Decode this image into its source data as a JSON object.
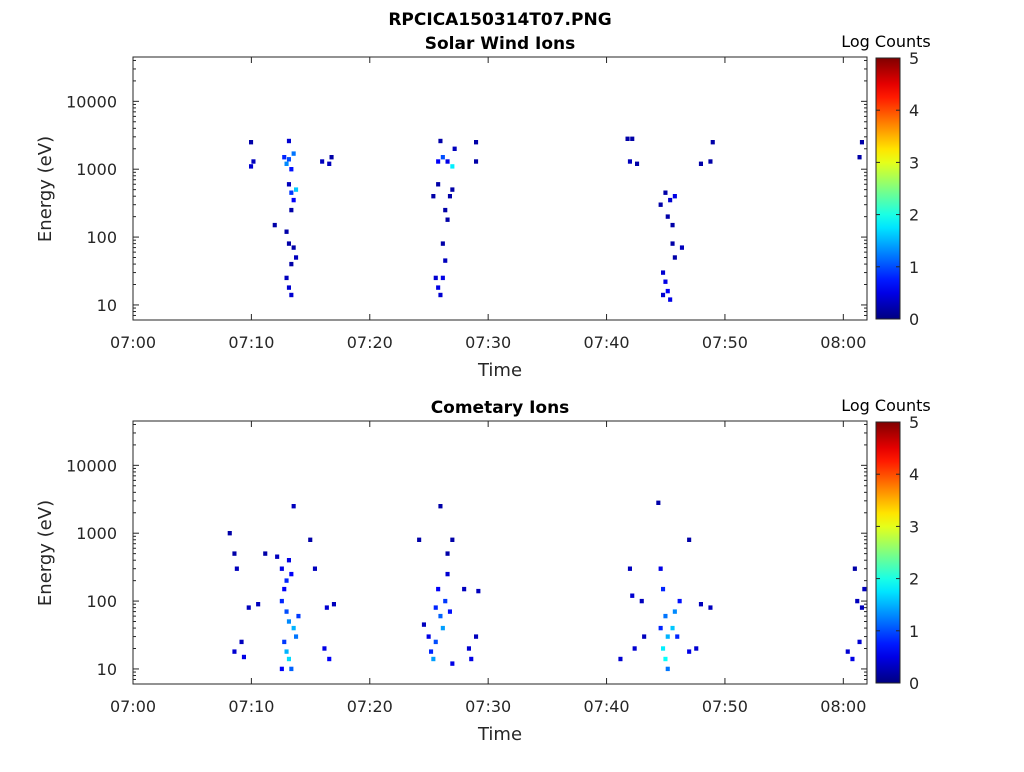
{
  "figure_title": "RPCICA150314T07.PNG",
  "colorbar": {
    "label": "Log Counts",
    "ticks": [
      0,
      1,
      2,
      3,
      4,
      5
    ],
    "colormap": "jet",
    "range": [
      0,
      5
    ]
  },
  "chart_data": [
    {
      "type": "heatmap",
      "title": "Solar Wind Ions",
      "xlabel": "Time",
      "ylabel": "Energy (eV)",
      "xlim": [
        "07:00",
        "08:02"
      ],
      "ylim": [
        6,
        45000
      ],
      "yscale": "log",
      "xticks": [
        "07:00",
        "07:10",
        "07:20",
        "07:30",
        "07:40",
        "07:50",
        "08:00"
      ],
      "yticks": [
        10,
        100,
        1000,
        10000
      ],
      "ytick_labels": [
        "10",
        "100",
        "1000",
        "10000"
      ],
      "grid": false,
      "cell_minutes": 0.35,
      "cells": [
        {
          "t": "07:09.8",
          "e": 2500,
          "v": 0.2
        },
        {
          "t": "07:09.8",
          "e": 1100,
          "v": 0.4
        },
        {
          "t": "07:10.0",
          "e": 1300,
          "v": 0.3
        },
        {
          "t": "07:11.8",
          "e": 150,
          "v": 0.2
        },
        {
          "t": "07:12.6",
          "e": 1500,
          "v": 0.8
        },
        {
          "t": "07:12.8",
          "e": 1200,
          "v": 1.3
        },
        {
          "t": "07:13.0",
          "e": 2600,
          "v": 0.4
        },
        {
          "t": "07:13.0",
          "e": 1400,
          "v": 1.0
        },
        {
          "t": "07:13.2",
          "e": 1000,
          "v": 0.7
        },
        {
          "t": "07:13.4",
          "e": 1700,
          "v": 1.2
        },
        {
          "t": "07:13.0",
          "e": 600,
          "v": 0.3
        },
        {
          "t": "07:13.2",
          "e": 450,
          "v": 0.9
        },
        {
          "t": "07:13.6",
          "e": 500,
          "v": 1.6
        },
        {
          "t": "07:13.4",
          "e": 350,
          "v": 0.6
        },
        {
          "t": "07:13.2",
          "e": 250,
          "v": 0.2
        },
        {
          "t": "07:12.8",
          "e": 120,
          "v": 0.2
        },
        {
          "t": "07:13.0",
          "e": 80,
          "v": 0.2
        },
        {
          "t": "07:13.4",
          "e": 70,
          "v": 0.2
        },
        {
          "t": "07:13.6",
          "e": 50,
          "v": 0.3
        },
        {
          "t": "07:13.2",
          "e": 40,
          "v": 0.2
        },
        {
          "t": "07:12.8",
          "e": 25,
          "v": 0.3
        },
        {
          "t": "07:13.0",
          "e": 18,
          "v": 0.4
        },
        {
          "t": "07:13.2",
          "e": 14,
          "v": 0.4
        },
        {
          "t": "07:15.8",
          "e": 1300,
          "v": 0.3
        },
        {
          "t": "07:16.4",
          "e": 1200,
          "v": 0.3
        },
        {
          "t": "07:16.6",
          "e": 1500,
          "v": 0.2
        },
        {
          "t": "07:25.8",
          "e": 2600,
          "v": 0.2
        },
        {
          "t": "07:25.6",
          "e": 1300,
          "v": 0.6
        },
        {
          "t": "07:26.0",
          "e": 1500,
          "v": 1.0
        },
        {
          "t": "07:26.4",
          "e": 1300,
          "v": 0.5
        },
        {
          "t": "07:26.8",
          "e": 1100,
          "v": 1.8
        },
        {
          "t": "07:27.0",
          "e": 2000,
          "v": 0.3
        },
        {
          "t": "07:26.8",
          "e": 500,
          "v": 0.2
        },
        {
          "t": "07:26.6",
          "e": 400,
          "v": 0.2
        },
        {
          "t": "07:25.6",
          "e": 600,
          "v": 0.2
        },
        {
          "t": "07:25.2",
          "e": 400,
          "v": 0.2
        },
        {
          "t": "07:26.2",
          "e": 250,
          "v": 0.2
        },
        {
          "t": "07:26.4",
          "e": 180,
          "v": 0.2
        },
        {
          "t": "07:26.0",
          "e": 80,
          "v": 0.2
        },
        {
          "t": "07:26.2",
          "e": 45,
          "v": 0.3
        },
        {
          "t": "07:25.4",
          "e": 25,
          "v": 0.4
        },
        {
          "t": "07:25.6",
          "e": 18,
          "v": 0.5
        },
        {
          "t": "07:25.8",
          "e": 14,
          "v": 0.4
        },
        {
          "t": "07:26.0",
          "e": 25,
          "v": 0.5
        },
        {
          "t": "07:28.8",
          "e": 1300,
          "v": 0.2
        },
        {
          "t": "07:28.8",
          "e": 2500,
          "v": 0.2
        },
        {
          "t": "07:41.6",
          "e": 2800,
          "v": 0.2
        },
        {
          "t": "07:42.0",
          "e": 2800,
          "v": 0.2
        },
        {
          "t": "07:41.8",
          "e": 1300,
          "v": 0.3
        },
        {
          "t": "07:42.4",
          "e": 1200,
          "v": 0.2
        },
        {
          "t": "07:44.8",
          "e": 450,
          "v": 0.2
        },
        {
          "t": "07:45.2",
          "e": 350,
          "v": 0.4
        },
        {
          "t": "07:45.6",
          "e": 400,
          "v": 0.5
        },
        {
          "t": "07:44.4",
          "e": 300,
          "v": 0.2
        },
        {
          "t": "07:45.0",
          "e": 200,
          "v": 0.2
        },
        {
          "t": "07:45.4",
          "e": 150,
          "v": 0.2
        },
        {
          "t": "07:45.4",
          "e": 80,
          "v": 0.2
        },
        {
          "t": "07:46.2",
          "e": 70,
          "v": 0.3
        },
        {
          "t": "07:45.6",
          "e": 50,
          "v": 0.2
        },
        {
          "t": "07:44.6",
          "e": 30,
          "v": 0.4
        },
        {
          "t": "07:44.8",
          "e": 22,
          "v": 0.5
        },
        {
          "t": "07:45.0",
          "e": 16,
          "v": 0.6
        },
        {
          "t": "07:45.2",
          "e": 12,
          "v": 0.5
        },
        {
          "t": "07:44.6",
          "e": 14,
          "v": 0.4
        },
        {
          "t": "07:47.8",
          "e": 1200,
          "v": 0.2
        },
        {
          "t": "07:48.6",
          "e": 1300,
          "v": 0.2
        },
        {
          "t": "07:48.8",
          "e": 2500,
          "v": 0.2
        },
        {
          "t": "08:01.2",
          "e": 1500,
          "v": 0.2
        },
        {
          "t": "08:01.4",
          "e": 2500,
          "v": 0.2
        }
      ]
    },
    {
      "type": "heatmap",
      "title": "Cometary Ions",
      "xlabel": "Time",
      "ylabel": "Energy (eV)",
      "xlim": [
        "07:00",
        "08:02"
      ],
      "ylim": [
        6,
        45000
      ],
      "yscale": "log",
      "xticks": [
        "07:00",
        "07:10",
        "07:20",
        "07:30",
        "07:40",
        "07:50",
        "08:00"
      ],
      "yticks": [
        10,
        100,
        1000,
        10000
      ],
      "ytick_labels": [
        "10",
        "100",
        "1000",
        "10000"
      ],
      "grid": false,
      "cell_minutes": 0.35,
      "cells": [
        {
          "t": "07:08.0",
          "e": 1000,
          "v": 0.2
        },
        {
          "t": "07:08.4",
          "e": 500,
          "v": 0.2
        },
        {
          "t": "07:08.6",
          "e": 300,
          "v": 0.3
        },
        {
          "t": "07:08.4",
          "e": 18,
          "v": 0.4
        },
        {
          "t": "07:09.2",
          "e": 15,
          "v": 0.5
        },
        {
          "t": "07:09.0",
          "e": 25,
          "v": 0.3
        },
        {
          "t": "07:09.6",
          "e": 80,
          "v": 0.3
        },
        {
          "t": "07:10.4",
          "e": 90,
          "v": 0.3
        },
        {
          "t": "07:11.0",
          "e": 500,
          "v": 0.2
        },
        {
          "t": "07:12.0",
          "e": 450,
          "v": 0.3
        },
        {
          "t": "07:12.4",
          "e": 300,
          "v": 0.5
        },
        {
          "t": "07:12.6",
          "e": 150,
          "v": 0.6
        },
        {
          "t": "07:12.8",
          "e": 200,
          "v": 0.8
        },
        {
          "t": "07:13.0",
          "e": 400,
          "v": 0.5
        },
        {
          "t": "07:13.2",
          "e": 250,
          "v": 0.6
        },
        {
          "t": "07:12.4",
          "e": 100,
          "v": 0.8
        },
        {
          "t": "07:12.8",
          "e": 70,
          "v": 1.0
        },
        {
          "t": "07:13.0",
          "e": 50,
          "v": 1.3
        },
        {
          "t": "07:13.4",
          "e": 40,
          "v": 1.5
        },
        {
          "t": "07:13.6",
          "e": 30,
          "v": 1.2
        },
        {
          "t": "07:12.6",
          "e": 25,
          "v": 0.9
        },
        {
          "t": "07:12.8",
          "e": 18,
          "v": 1.5
        },
        {
          "t": "07:13.0",
          "e": 14,
          "v": 1.7
        },
        {
          "t": "07:13.2",
          "e": 10,
          "v": 1.1
        },
        {
          "t": "07:12.4",
          "e": 10,
          "v": 0.6
        },
        {
          "t": "07:13.8",
          "e": 60,
          "v": 0.9
        },
        {
          "t": "07:13.4",
          "e": 2500,
          "v": 0.3
        },
        {
          "t": "07:14.8",
          "e": 800,
          "v": 0.2
        },
        {
          "t": "07:15.2",
          "e": 300,
          "v": 0.3
        },
        {
          "t": "07:16.0",
          "e": 20,
          "v": 0.5
        },
        {
          "t": "07:16.4",
          "e": 14,
          "v": 0.6
        },
        {
          "t": "07:16.2",
          "e": 80,
          "v": 0.4
        },
        {
          "t": "07:16.8",
          "e": 90,
          "v": 0.3
        },
        {
          "t": "07:24.0",
          "e": 800,
          "v": 0.2
        },
        {
          "t": "07:24.4",
          "e": 45,
          "v": 0.3
        },
        {
          "t": "07:24.8",
          "e": 30,
          "v": 0.5
        },
        {
          "t": "07:25.0",
          "e": 18,
          "v": 0.8
        },
        {
          "t": "07:25.2",
          "e": 14,
          "v": 1.4
        },
        {
          "t": "07:25.4",
          "e": 25,
          "v": 1.0
        },
        {
          "t": "07:25.4",
          "e": 80,
          "v": 0.8
        },
        {
          "t": "07:25.6",
          "e": 150,
          "v": 0.6
        },
        {
          "t": "07:25.8",
          "e": 60,
          "v": 1.1
        },
        {
          "t": "07:26.0",
          "e": 40,
          "v": 1.4
        },
        {
          "t": "07:26.2",
          "e": 100,
          "v": 0.9
        },
        {
          "t": "07:26.4",
          "e": 250,
          "v": 0.4
        },
        {
          "t": "07:26.6",
          "e": 70,
          "v": 0.7
        },
        {
          "t": "07:25.8",
          "e": 2500,
          "v": 0.2
        },
        {
          "t": "07:26.4",
          "e": 500,
          "v": 0.2
        },
        {
          "t": "07:26.8",
          "e": 800,
          "v": 0.2
        },
        {
          "t": "07:27.8",
          "e": 150,
          "v": 0.3
        },
        {
          "t": "07:28.2",
          "e": 20,
          "v": 0.4
        },
        {
          "t": "07:28.4",
          "e": 14,
          "v": 0.5
        },
        {
          "t": "07:28.8",
          "e": 30,
          "v": 0.3
        },
        {
          "t": "07:29.0",
          "e": 140,
          "v": 0.3
        },
        {
          "t": "07:26.8",
          "e": 12,
          "v": 0.5
        },
        {
          "t": "07:41.0",
          "e": 14,
          "v": 0.4
        },
        {
          "t": "07:41.8",
          "e": 300,
          "v": 0.3
        },
        {
          "t": "07:42.0",
          "e": 120,
          "v": 0.4
        },
        {
          "t": "07:42.2",
          "e": 20,
          "v": 0.4
        },
        {
          "t": "07:42.8",
          "e": 100,
          "v": 0.3
        },
        {
          "t": "07:43.0",
          "e": 30,
          "v": 0.3
        },
        {
          "t": "07:44.2",
          "e": 2800,
          "v": 0.2
        },
        {
          "t": "07:44.4",
          "e": 300,
          "v": 0.5
        },
        {
          "t": "07:44.6",
          "e": 150,
          "v": 0.8
        },
        {
          "t": "07:44.8",
          "e": 60,
          "v": 1.2
        },
        {
          "t": "07:45.0",
          "e": 30,
          "v": 1.5
        },
        {
          "t": "07:44.6",
          "e": 20,
          "v": 1.8
        },
        {
          "t": "07:44.8",
          "e": 14,
          "v": 1.9
        },
        {
          "t": "07:45.0",
          "e": 10,
          "v": 1.2
        },
        {
          "t": "07:45.4",
          "e": 40,
          "v": 1.6
        },
        {
          "t": "07:45.6",
          "e": 70,
          "v": 1.3
        },
        {
          "t": "07:45.8",
          "e": 30,
          "v": 0.8
        },
        {
          "t": "07:46.0",
          "e": 100,
          "v": 0.7
        },
        {
          "t": "07:44.4",
          "e": 40,
          "v": 0.8
        },
        {
          "t": "07:46.8",
          "e": 18,
          "v": 0.5
        },
        {
          "t": "07:47.4",
          "e": 20,
          "v": 0.4
        },
        {
          "t": "07:47.8",
          "e": 90,
          "v": 0.3
        },
        {
          "t": "07:48.6",
          "e": 80,
          "v": 0.3
        },
        {
          "t": "07:46.8",
          "e": 800,
          "v": 0.2
        },
        {
          "t": "08:00.2",
          "e": 18,
          "v": 0.4
        },
        {
          "t": "08:00.6",
          "e": 14,
          "v": 0.5
        },
        {
          "t": "08:00.8",
          "e": 300,
          "v": 0.2
        },
        {
          "t": "08:01.0",
          "e": 100,
          "v": 0.3
        },
        {
          "t": "08:01.2",
          "e": 25,
          "v": 0.4
        },
        {
          "t": "08:01.4",
          "e": 80,
          "v": 0.3
        },
        {
          "t": "08:01.6",
          "e": 150,
          "v": 0.3
        }
      ]
    }
  ]
}
